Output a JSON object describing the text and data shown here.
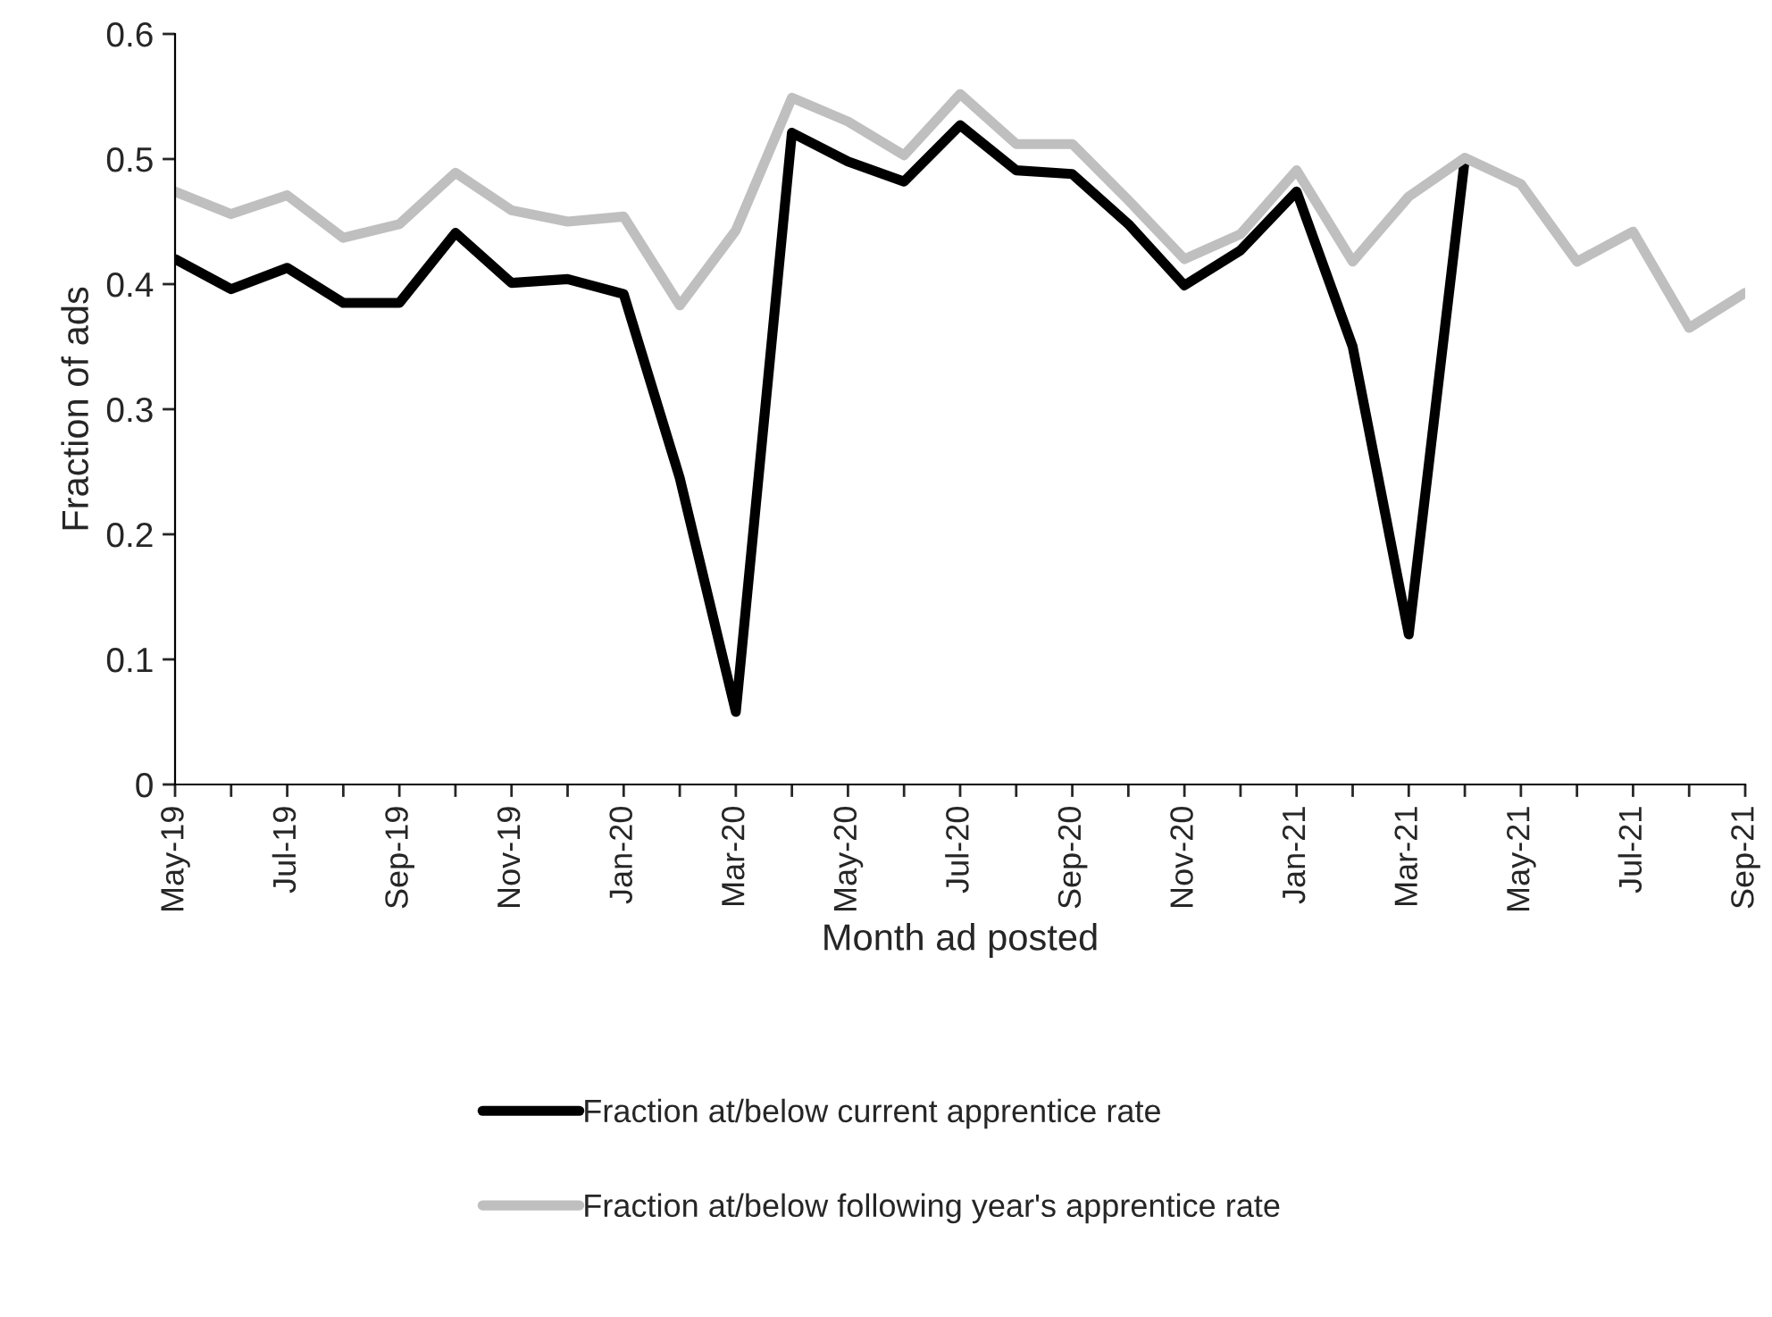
{
  "chart_data": {
    "type": "line",
    "xlabel": "Month ad posted",
    "ylabel": "Fraction of ads",
    "categories": [
      "May-19",
      null,
      "Jul-19",
      null,
      "Sep-19",
      null,
      "Nov-19",
      null,
      "Jan-20",
      null,
      "Mar-20",
      null,
      "May-20",
      null,
      "Jul-20",
      null,
      "Sep-20",
      null,
      "Nov-20",
      null,
      "Jan-21",
      null,
      "Mar-21",
      null,
      "May-21",
      null,
      "Jul-21",
      null,
      "Sep-21"
    ],
    "series": [
      {
        "name": "Fraction at/below current apprentice rate",
        "color": "#000000",
        "values": [
          0.42,
          0.396,
          0.413,
          0.385,
          0.385,
          0.441,
          0.401,
          0.404,
          0.392,
          0.245,
          0.058,
          0.521,
          0.498,
          0.482,
          0.527,
          0.491,
          0.488,
          0.448,
          0.399,
          0.427,
          0.474,
          0.35,
          0.12,
          0.5,
          null,
          null,
          null,
          null,
          null
        ]
      },
      {
        "name": "Fraction at/below following year's apprentice rate",
        "color": "#bfbfbf",
        "values": [
          0.474,
          0.456,
          0.471,
          0.437,
          0.448,
          0.489,
          0.459,
          0.45,
          0.454,
          0.383,
          0.443,
          0.549,
          0.53,
          0.503,
          0.552,
          0.512,
          0.512,
          0.467,
          0.42,
          0.44,
          0.491,
          0.418,
          0.47,
          0.501,
          0.48,
          0.418,
          0.442,
          0.365,
          0.393
        ]
      }
    ],
    "ylim": [
      0,
      0.6
    ],
    "yticks": [
      0,
      0.1,
      0.2,
      0.3,
      0.4,
      0.5,
      0.6
    ],
    "grid": false,
    "legend": "bottom",
    "line_style": "solid",
    "marker": "none"
  }
}
